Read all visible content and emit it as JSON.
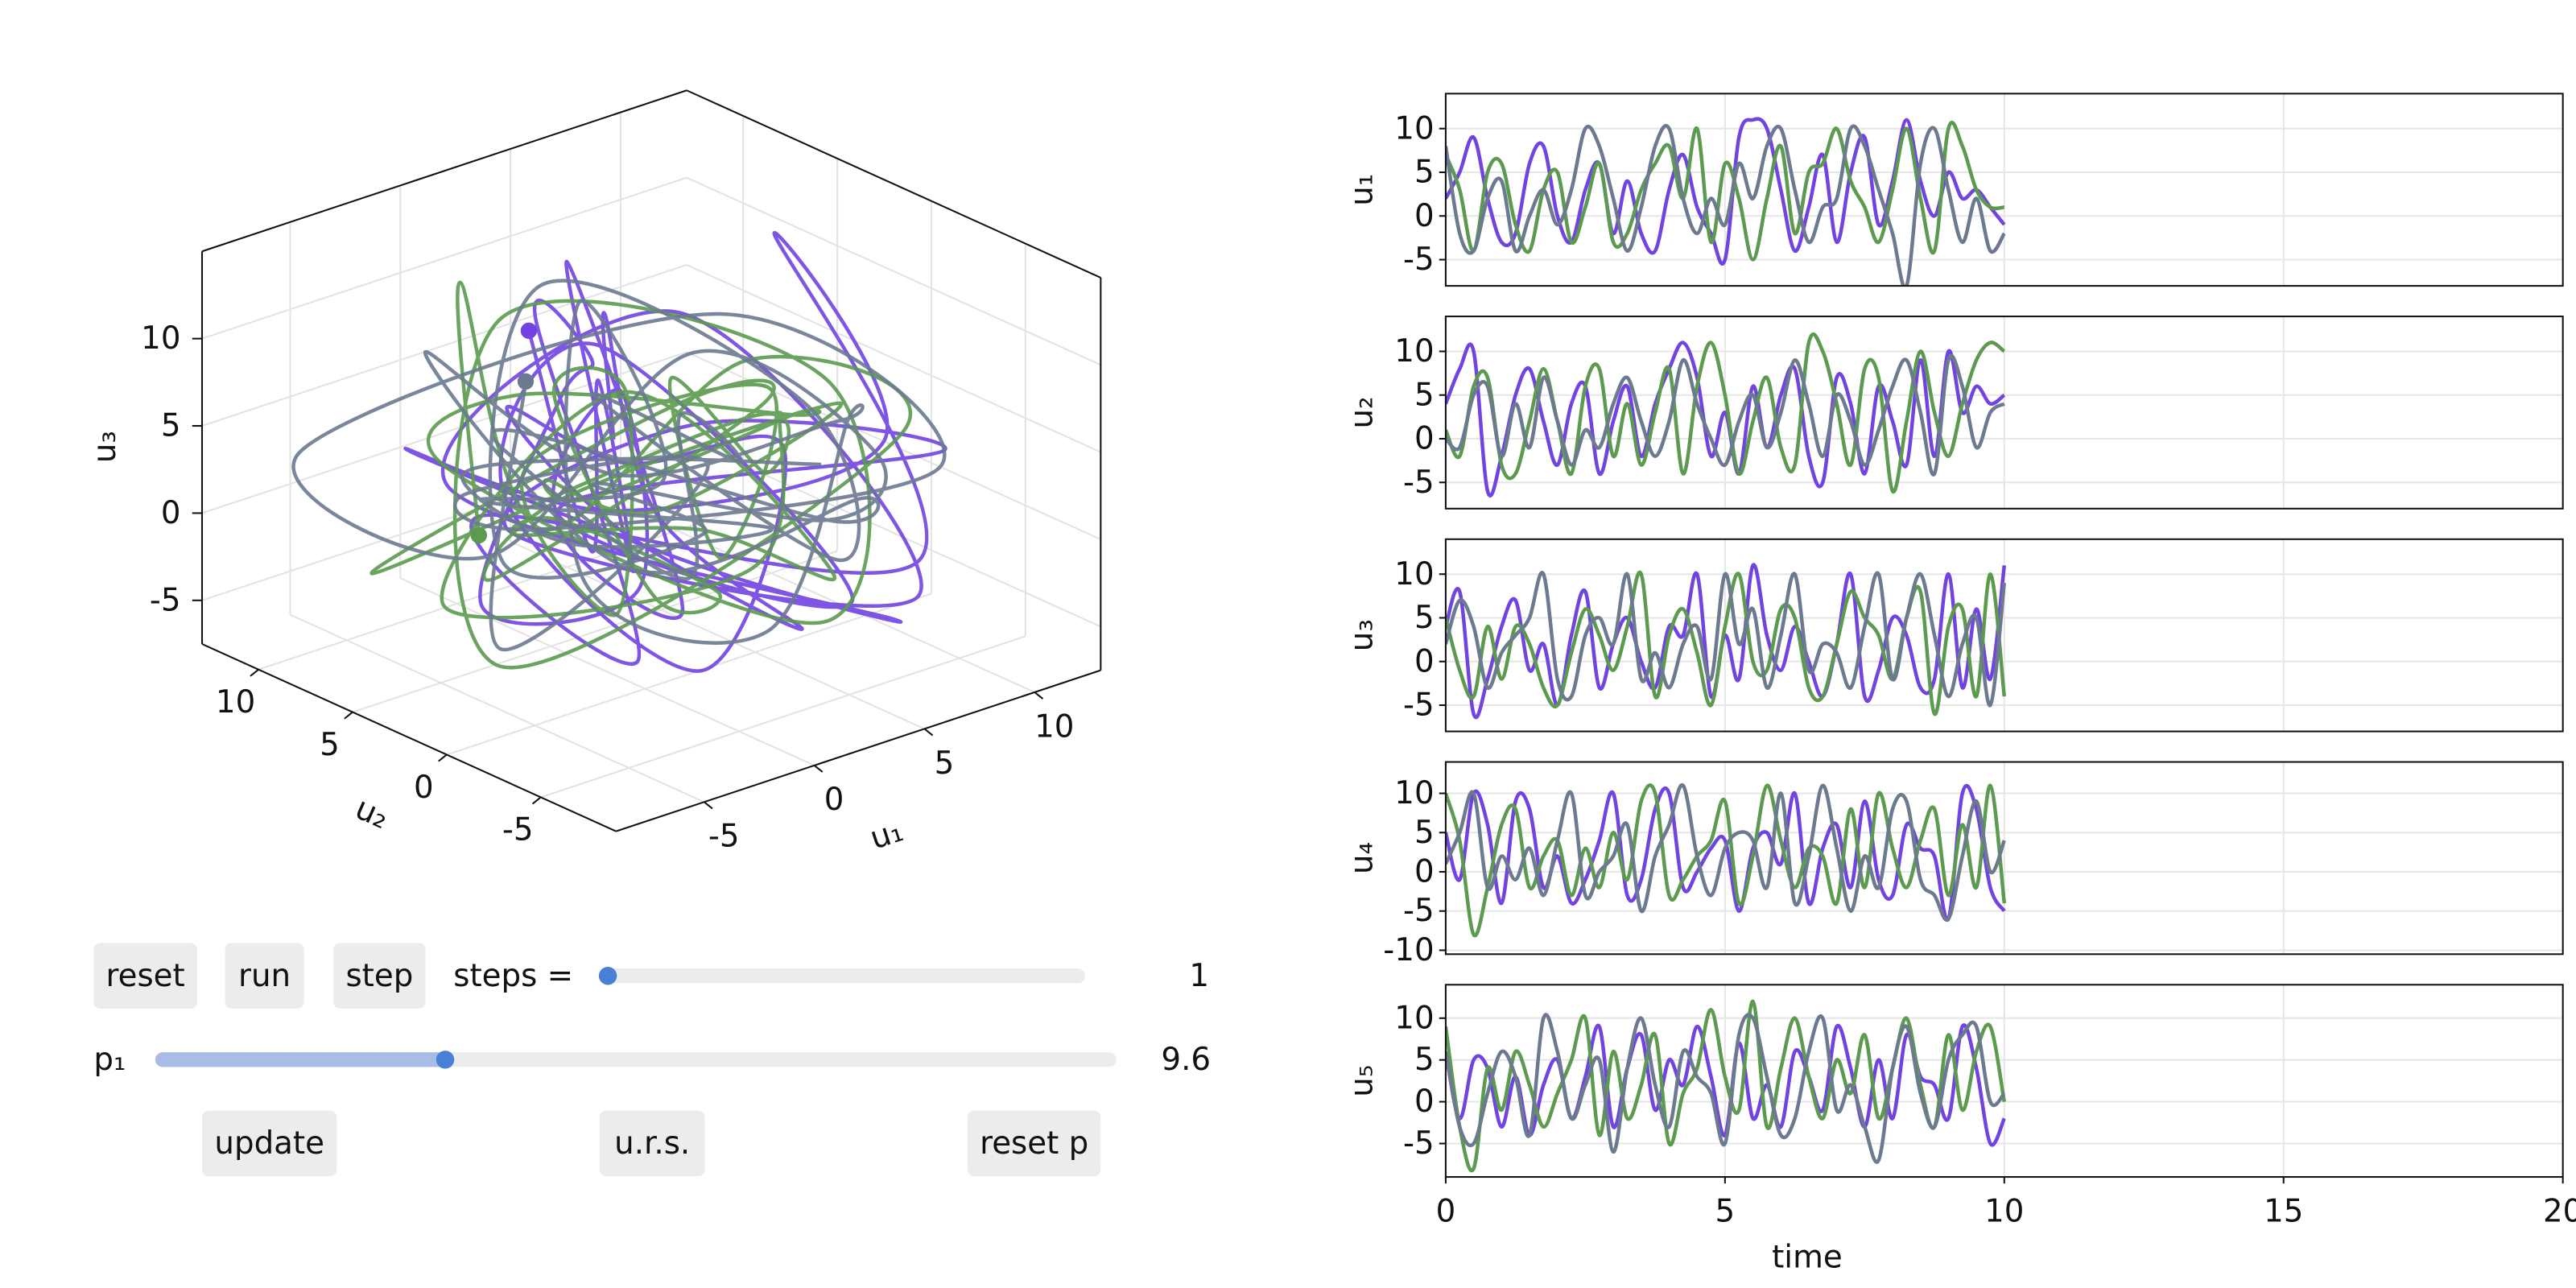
{
  "chart_data": [
    {
      "type": "line3d",
      "xlabel": "u₁",
      "ylabel": "u₂",
      "zlabel": "u₃",
      "xlim": [
        -9,
        13
      ],
      "ylim": [
        -9,
        13
      ],
      "zlim": [
        -7.5,
        15
      ],
      "xticks": [
        -5,
        0,
        5,
        10
      ],
      "yticks": [
        -5,
        0,
        5,
        10
      ],
      "zticks": [
        -5,
        0,
        5,
        10
      ],
      "grid": true
    },
    {
      "type": "line",
      "ylabel": "u₁",
      "xtick_labels": false,
      "x": [
        0,
        0.25,
        0.5,
        0.75,
        1,
        1.25,
        1.5,
        1.75,
        2,
        2.25,
        2.5,
        2.75,
        3,
        3.25,
        3.5,
        3.75,
        4,
        4.25,
        4.5,
        4.75,
        5,
        5.25,
        5.5,
        5.75,
        6,
        6.25,
        6.5,
        6.75,
        7,
        7.25,
        7.5,
        7.75,
        8,
        8.25,
        8.5,
        8.75,
        9,
        9.25,
        9.5,
        9.75,
        10
      ],
      "xlim": [
        0,
        20
      ],
      "xticks": [
        0,
        5,
        10,
        15,
        20
      ],
      "ylim": [
        -8,
        14
      ],
      "yticks": [
        -5,
        0,
        5,
        10
      ],
      "grid": true,
      "series": [
        {
          "color": "#7143e0",
          "values": [
            2,
            5,
            9,
            2,
            -3,
            -2,
            6,
            8,
            0,
            -3,
            3,
            6,
            -2,
            4,
            -2,
            -4,
            3,
            7,
            1,
            -2,
            -5,
            9,
            11,
            10,
            3,
            -4,
            1,
            7,
            -3,
            5,
            9,
            -1,
            4,
            11,
            4,
            0,
            5,
            2,
            3,
            1,
            -1
          ]
        },
        {
          "color": "#5b9a4f",
          "values": [
            7,
            3,
            -4,
            5,
            6,
            -1,
            -4,
            3,
            5,
            -3,
            1,
            6,
            -3,
            -2,
            3,
            6,
            8,
            2,
            10,
            -3,
            6,
            2,
            -5,
            2,
            8,
            -2,
            5,
            6,
            10,
            4,
            1,
            -3,
            3,
            10,
            2,
            -4,
            10,
            8,
            3,
            1,
            1
          ]
        },
        {
          "color": "#6c7a8f",
          "values": [
            8,
            -2,
            -4,
            2,
            4,
            -4,
            0,
            3,
            -1,
            3,
            10,
            8,
            2,
            -4,
            1,
            8,
            10,
            2,
            -2,
            2,
            -1,
            6,
            2,
            8,
            10,
            3,
            -3,
            1,
            2,
            10,
            8,
            3,
            -2,
            -8,
            6,
            10,
            3,
            -3,
            2,
            -4,
            -2
          ]
        }
      ]
    },
    {
      "type": "line",
      "ylabel": "u₂",
      "xtick_labels": false,
      "x": [
        0,
        0.25,
        0.5,
        0.75,
        1,
        1.25,
        1.5,
        1.75,
        2,
        2.25,
        2.5,
        2.75,
        3,
        3.25,
        3.5,
        3.75,
        4,
        4.25,
        4.5,
        4.75,
        5,
        5.25,
        5.5,
        5.75,
        6,
        6.25,
        6.5,
        6.75,
        7,
        7.25,
        7.5,
        7.75,
        8,
        8.25,
        8.5,
        8.75,
        9,
        9.25,
        9.5,
        9.75,
        10
      ],
      "xlim": [
        0,
        20
      ],
      "xticks": [
        0,
        5,
        10,
        15,
        20
      ],
      "ylim": [
        -8,
        14
      ],
      "yticks": [
        -5,
        0,
        5,
        10
      ],
      "grid": true,
      "series": [
        {
          "color": "#7143e0",
          "values": [
            4,
            8,
            10,
            -6,
            -2,
            5,
            8,
            2,
            -3,
            4,
            6,
            -4,
            2,
            6,
            -2,
            4,
            8,
            11,
            7,
            -2,
            3,
            -4,
            6,
            -1,
            5,
            8,
            -2,
            -5,
            7,
            4,
            -4,
            6,
            2,
            -3,
            9,
            -2,
            10,
            3,
            6,
            4,
            5
          ]
        },
        {
          "color": "#5b9a4f",
          "values": [
            1,
            -2,
            6,
            7,
            -3,
            -4,
            2,
            8,
            2,
            -4,
            6,
            8,
            -2,
            4,
            -3,
            3,
            8,
            -4,
            6,
            11,
            5,
            -4,
            2,
            7,
            -1,
            -3,
            11,
            10,
            4,
            -3,
            8,
            7,
            -6,
            2,
            10,
            3,
            -2,
            4,
            9,
            11,
            10
          ]
        },
        {
          "color": "#6c7a8f",
          "values": [
            0,
            -1,
            5,
            6,
            -2,
            4,
            -1,
            7,
            2,
            -3,
            1,
            -1,
            4,
            7,
            2,
            -2,
            2,
            9,
            4,
            0,
            -3,
            2,
            5,
            -1,
            3,
            9,
            4,
            -2,
            5,
            2,
            -3,
            1,
            6,
            9,
            3,
            -4,
            9,
            6,
            -1,
            3,
            4
          ]
        }
      ]
    },
    {
      "type": "line",
      "ylabel": "u₃",
      "xtick_labels": false,
      "x": [
        0,
        0.25,
        0.5,
        0.75,
        1,
        1.25,
        1.5,
        1.75,
        2,
        2.25,
        2.5,
        2.75,
        3,
        3.25,
        3.5,
        3.75,
        4,
        4.25,
        4.5,
        4.75,
        5,
        5.25,
        5.5,
        5.75,
        6,
        6.25,
        6.5,
        6.75,
        7,
        7.25,
        7.5,
        7.75,
        8,
        8.25,
        8.5,
        8.75,
        9,
        9.25,
        9.5,
        9.75,
        10
      ],
      "xlim": [
        0,
        20
      ],
      "xticks": [
        0,
        5,
        10,
        15,
        20
      ],
      "ylim": [
        -8,
        14
      ],
      "yticks": [
        -5,
        0,
        5,
        10
      ],
      "grid": true,
      "series": [
        {
          "color": "#7143e0",
          "values": [
            4,
            8,
            -6,
            -2,
            4,
            7,
            -1,
            2,
            -5,
            3,
            8,
            -3,
            2,
            5,
            0,
            -3,
            4,
            3,
            10,
            -4,
            3,
            -2,
            11,
            3,
            -1,
            4,
            0,
            -4,
            2,
            10,
            -4,
            -1,
            5,
            3,
            -3,
            -2,
            10,
            -3,
            6,
            -2,
            11
          ]
        },
        {
          "color": "#5b9a4f",
          "values": [
            5,
            -1,
            -4,
            4,
            -2,
            4,
            2,
            -3,
            -5,
            1,
            6,
            3,
            -1,
            4,
            10,
            -4,
            3,
            6,
            1,
            -5,
            4,
            10,
            0,
            -1,
            6,
            5,
            -3,
            -4,
            2,
            8,
            5,
            3,
            -2,
            5,
            8,
            -6,
            4,
            6,
            -4,
            10,
            -4
          ]
        },
        {
          "color": "#6c7a8f",
          "values": [
            2,
            7,
            4,
            -3,
            1,
            3,
            5,
            10,
            -2,
            -4,
            3,
            5,
            2,
            10,
            -2,
            1,
            -3,
            2,
            4,
            -2,
            10,
            2,
            6,
            -3,
            3,
            10,
            -1,
            2,
            1,
            -3,
            4,
            10,
            -2,
            5,
            10,
            3,
            -4,
            2,
            5,
            -5,
            9
          ]
        }
      ]
    },
    {
      "type": "line",
      "ylabel": "u₄",
      "xtick_labels": false,
      "x": [
        0,
        0.25,
        0.5,
        0.75,
        1,
        1.25,
        1.5,
        1.75,
        2,
        2.25,
        2.5,
        2.75,
        3,
        3.25,
        3.5,
        3.75,
        4,
        4.25,
        4.5,
        4.75,
        5,
        5.25,
        5.5,
        5.75,
        6,
        6.25,
        6.5,
        6.75,
        7,
        7.25,
        7.5,
        7.75,
        8,
        8.25,
        8.5,
        8.75,
        9,
        9.25,
        9.5,
        9.75,
        10
      ],
      "xlim": [
        0,
        20
      ],
      "xticks": [
        0,
        5,
        10,
        15,
        20
      ],
      "ylim": [
        -10.5,
        14
      ],
      "yticks": [
        -10,
        -5,
        0,
        5,
        10
      ],
      "grid": true,
      "series": [
        {
          "color": "#7143e0",
          "values": [
            5,
            -1,
            10,
            6,
            -4,
            9,
            8,
            -2,
            2,
            -4,
            -1,
            4,
            10,
            -3,
            -1,
            8,
            10,
            -2,
            0,
            3,
            4,
            -5,
            3,
            5,
            1,
            10,
            -4,
            3,
            6,
            -2,
            9,
            -1,
            -3,
            6,
            3,
            2,
            -6,
            10,
            8,
            -2,
            -5
          ]
        },
        {
          "color": "#5b9a4f",
          "values": [
            10,
            4,
            -8,
            -2,
            6,
            8,
            -2,
            2,
            4,
            -3,
            3,
            -2,
            5,
            -1,
            9,
            10,
            -3,
            -1,
            2,
            4,
            9,
            -4,
            2,
            11,
            4,
            -2,
            3,
            2,
            -4,
            8,
            -2,
            10,
            3,
            -2,
            4,
            8,
            -3,
            6,
            -2,
            11,
            -4
          ]
        },
        {
          "color": "#6c7a8f",
          "values": [
            1,
            5,
            10,
            -2,
            2,
            -1,
            3,
            -3,
            4,
            10,
            -3,
            0,
            2,
            6,
            -5,
            2,
            6,
            11,
            2,
            -3,
            3,
            5,
            4,
            -2,
            10,
            -4,
            2,
            11,
            3,
            -5,
            2,
            -2,
            8,
            9,
            -1,
            -3,
            -6,
            2,
            9,
            0,
            4
          ]
        }
      ]
    },
    {
      "type": "line",
      "ylabel": "u₅",
      "xlabel": "time",
      "xtick_labels": true,
      "x": [
        0,
        0.25,
        0.5,
        0.75,
        1,
        1.25,
        1.5,
        1.75,
        2,
        2.25,
        2.5,
        2.75,
        3,
        3.25,
        3.5,
        3.75,
        4,
        4.25,
        4.5,
        4.75,
        5,
        5.25,
        5.5,
        5.75,
        6,
        6.25,
        6.5,
        6.75,
        7,
        7.25,
        7.5,
        7.75,
        8,
        8.25,
        8.5,
        8.75,
        9,
        9.25,
        9.5,
        9.75,
        10
      ],
      "xlim": [
        0,
        20
      ],
      "xticks": [
        0,
        5,
        10,
        15,
        20
      ],
      "ylim": [
        -9,
        14
      ],
      "yticks": [
        -5,
        0,
        5,
        10
      ],
      "grid": true,
      "series": [
        {
          "color": "#7143e0",
          "values": [
            6,
            -2,
            5,
            4,
            -3,
            3,
            -4,
            2,
            5,
            -2,
            3,
            9,
            -3,
            4,
            8,
            -1,
            5,
            2,
            9,
            3,
            -4,
            7,
            -2,
            2,
            -3,
            6,
            3,
            -1,
            9,
            4,
            -3,
            5,
            -2,
            8,
            3,
            2,
            -2,
            9,
            4,
            -5,
            -2
          ]
        },
        {
          "color": "#5b9a4f",
          "values": [
            9,
            -3,
            -8,
            4,
            -1,
            6,
            2,
            -3,
            1,
            5,
            10,
            -4,
            6,
            -2,
            2,
            8,
            -5,
            1,
            4,
            11,
            3,
            -1,
            12,
            -3,
            4,
            10,
            3,
            -2,
            5,
            1,
            8,
            -2,
            4,
            10,
            2,
            -3,
            8,
            -1,
            6,
            9,
            0
          ]
        },
        {
          "color": "#6c7a8f",
          "values": [
            6,
            -3,
            -5,
            1,
            6,
            3,
            -4,
            10,
            6,
            -2,
            2,
            5,
            -6,
            4,
            10,
            2,
            -3,
            6,
            3,
            1,
            -5,
            8,
            10,
            3,
            -4,
            -2,
            6,
            10,
            -1,
            2,
            -3,
            -7,
            4,
            9,
            1,
            -3,
            5,
            8,
            9,
            0,
            1
          ]
        }
      ]
    }
  ],
  "controls": {
    "buttons": [
      "reset",
      "run",
      "step"
    ],
    "steps_slider": {
      "label": "steps =",
      "value": 1
    },
    "p_slider": {
      "label": "p₁",
      "value": 9.6
    },
    "bottom_buttons": [
      "update",
      "u.r.s.",
      "reset p"
    ]
  }
}
